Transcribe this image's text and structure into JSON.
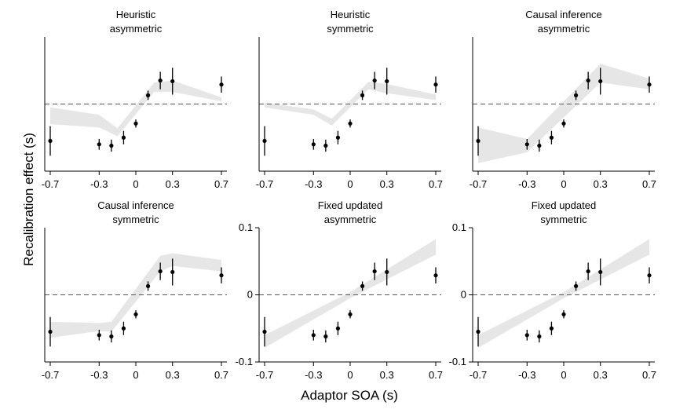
{
  "figure": {
    "ylabel": "Recalibration effect (s)",
    "xlabel": "Adaptor SOA (s)"
  },
  "chart_data": [
    {
      "type": "scatter",
      "title": [
        "Heuristic",
        "asymmetric"
      ],
      "xticks": [
        -0.7,
        -0.3,
        0,
        0.3,
        0.7
      ],
      "xtick_labels": [
        "-0.7",
        "-0.3",
        "0",
        "0.3",
        "0.7"
      ],
      "yticks": [],
      "ytick_labels": [],
      "xlim": [
        -0.72,
        0.72
      ],
      "ylim": [
        -0.1,
        0.1
      ],
      "points": [
        {
          "x": -0.7,
          "y": -0.055,
          "err": 0.022
        },
        {
          "x": -0.3,
          "y": -0.06,
          "err": 0.008
        },
        {
          "x": -0.2,
          "y": -0.062,
          "err": 0.009
        },
        {
          "x": -0.1,
          "y": -0.05,
          "err": 0.01
        },
        {
          "x": 0,
          "y": -0.029,
          "err": 0.006
        },
        {
          "x": 0.1,
          "y": 0.013,
          "err": 0.007
        },
        {
          "x": 0.2,
          "y": 0.035,
          "err": 0.013
        },
        {
          "x": 0.3,
          "y": 0.034,
          "err": 0.02
        },
        {
          "x": 0.7,
          "y": 0.029,
          "err": 0.012
        }
      ],
      "band": [
        {
          "x": -0.7,
          "lo": -0.03,
          "hi": -0.005
        },
        {
          "x": -0.3,
          "lo": -0.035,
          "hi": -0.016
        },
        {
          "x": -0.15,
          "lo": -0.048,
          "hi": -0.036
        },
        {
          "x": 0.15,
          "lo": 0.018,
          "hi": 0.032
        },
        {
          "x": 0.3,
          "lo": 0.018,
          "hi": 0.035
        },
        {
          "x": 0.7,
          "lo": 0.004,
          "hi": 0.01
        }
      ],
      "reference_line_y": 0
    },
    {
      "type": "scatter",
      "title": [
        "Heuristic",
        "symmetric"
      ],
      "xticks": [
        -0.7,
        -0.3,
        0,
        0.3,
        0.7
      ],
      "xtick_labels": [
        "-0.7",
        "-0.3",
        "0",
        "0.3",
        "0.7"
      ],
      "yticks": [],
      "ytick_labels": [],
      "xlim": [
        -0.72,
        0.72
      ],
      "ylim": [
        -0.1,
        0.1
      ],
      "points": [
        {
          "x": -0.7,
          "y": -0.055,
          "err": 0.022
        },
        {
          "x": -0.3,
          "y": -0.06,
          "err": 0.008
        },
        {
          "x": -0.2,
          "y": -0.062,
          "err": 0.009
        },
        {
          "x": -0.1,
          "y": -0.05,
          "err": 0.01
        },
        {
          "x": 0,
          "y": -0.029,
          "err": 0.006
        },
        {
          "x": 0.1,
          "y": 0.013,
          "err": 0.007
        },
        {
          "x": 0.2,
          "y": 0.035,
          "err": 0.013
        },
        {
          "x": 0.3,
          "y": 0.034,
          "err": 0.02
        },
        {
          "x": 0.7,
          "y": 0.029,
          "err": 0.012
        }
      ],
      "band": [
        {
          "x": -0.7,
          "lo": -0.005,
          "hi": 0.002
        },
        {
          "x": -0.3,
          "lo": -0.016,
          "hi": -0.008
        },
        {
          "x": -0.15,
          "lo": -0.032,
          "hi": -0.022
        },
        {
          "x": 0.15,
          "lo": 0.022,
          "hi": 0.033
        },
        {
          "x": 0.3,
          "lo": 0.016,
          "hi": 0.03
        },
        {
          "x": 0.7,
          "lo": 0.006,
          "hi": 0.014
        }
      ],
      "reference_line_y": 0
    },
    {
      "type": "scatter",
      "title": [
        "Causal inference",
        "asymmetric"
      ],
      "xticks": [
        -0.7,
        -0.3,
        0,
        0.3,
        0.7
      ],
      "xtick_labels": [
        "-0.7",
        "-0.3",
        "0",
        "0.3",
        "0.7"
      ],
      "yticks": [],
      "ytick_labels": [],
      "xlim": [
        -0.72,
        0.72
      ],
      "ylim": [
        -0.1,
        0.1
      ],
      "points": [
        {
          "x": -0.7,
          "y": -0.055,
          "err": 0.022
        },
        {
          "x": -0.3,
          "y": -0.06,
          "err": 0.008
        },
        {
          "x": -0.2,
          "y": -0.062,
          "err": 0.009
        },
        {
          "x": -0.1,
          "y": -0.05,
          "err": 0.01
        },
        {
          "x": 0,
          "y": -0.029,
          "err": 0.006
        },
        {
          "x": 0.1,
          "y": 0.013,
          "err": 0.007
        },
        {
          "x": 0.2,
          "y": 0.035,
          "err": 0.013
        },
        {
          "x": 0.3,
          "y": 0.034,
          "err": 0.02
        },
        {
          "x": 0.7,
          "y": 0.029,
          "err": 0.012
        }
      ],
      "band": [
        {
          "x": -0.7,
          "lo": -0.088,
          "hi": -0.035
        },
        {
          "x": -0.3,
          "lo": -0.072,
          "hi": -0.052
        },
        {
          "x": 0.3,
          "lo": 0.032,
          "hi": 0.06
        },
        {
          "x": 0.7,
          "lo": 0.022,
          "hi": 0.038
        }
      ],
      "reference_line_y": 0
    },
    {
      "type": "scatter",
      "title": [
        "Causal inference",
        "symmetric"
      ],
      "xticks": [
        -0.7,
        -0.3,
        0,
        0.3,
        0.7
      ],
      "xtick_labels": [
        "-0.7",
        "-0.3",
        "0",
        "0.3",
        "0.7"
      ],
      "yticks": [],
      "ytick_labels": [],
      "xlim": [
        -0.72,
        0.72
      ],
      "ylim": [
        -0.1,
        0.1
      ],
      "points": [
        {
          "x": -0.7,
          "y": -0.055,
          "err": 0.022
        },
        {
          "x": -0.3,
          "y": -0.06,
          "err": 0.008
        },
        {
          "x": -0.2,
          "y": -0.062,
          "err": 0.009
        },
        {
          "x": -0.1,
          "y": -0.05,
          "err": 0.01
        },
        {
          "x": 0,
          "y": -0.029,
          "err": 0.006
        },
        {
          "x": 0.1,
          "y": 0.013,
          "err": 0.007
        },
        {
          "x": 0.2,
          "y": 0.035,
          "err": 0.013
        },
        {
          "x": 0.3,
          "y": 0.034,
          "err": 0.02
        },
        {
          "x": 0.7,
          "y": 0.029,
          "err": 0.012
        }
      ],
      "band": [
        {
          "x": -0.7,
          "lo": -0.064,
          "hi": -0.04
        },
        {
          "x": -0.3,
          "lo": -0.054,
          "hi": -0.042
        },
        {
          "x": -0.2,
          "lo": -0.055,
          "hi": -0.04
        },
        {
          "x": 0.2,
          "lo": 0.035,
          "hi": 0.058
        },
        {
          "x": 0.3,
          "lo": 0.043,
          "hi": 0.062
        },
        {
          "x": 0.7,
          "lo": 0.035,
          "hi": 0.052
        }
      ],
      "reference_line_y": 0
    },
    {
      "type": "scatter",
      "title": [
        "Fixed updated",
        "asymmetric"
      ],
      "xticks": [
        -0.7,
        -0.3,
        0,
        0.3,
        0.7
      ],
      "xtick_labels": [
        "-0.7",
        "-0.3",
        "0",
        "0.3",
        "0.7"
      ],
      "yticks": [
        -0.1,
        0,
        0.1
      ],
      "ytick_labels": [
        "-0.1",
        "0",
        "0.1"
      ],
      "xlim": [
        -0.72,
        0.72
      ],
      "ylim": [
        -0.1,
        0.1
      ],
      "points": [
        {
          "x": -0.7,
          "y": -0.055,
          "err": 0.022
        },
        {
          "x": -0.3,
          "y": -0.06,
          "err": 0.008
        },
        {
          "x": -0.2,
          "y": -0.062,
          "err": 0.009
        },
        {
          "x": -0.1,
          "y": -0.05,
          "err": 0.01
        },
        {
          "x": 0,
          "y": -0.029,
          "err": 0.006
        },
        {
          "x": 0.1,
          "y": 0.013,
          "err": 0.007
        },
        {
          "x": 0.2,
          "y": 0.035,
          "err": 0.013
        },
        {
          "x": 0.3,
          "y": 0.034,
          "err": 0.02
        },
        {
          "x": 0.7,
          "y": 0.029,
          "err": 0.012
        }
      ],
      "band": [
        {
          "x": -0.7,
          "lo": -0.079,
          "hi": -0.06
        },
        {
          "x": 0,
          "lo": -0.005,
          "hi": 0.004
        },
        {
          "x": 0.7,
          "lo": 0.06,
          "hi": 0.083
        }
      ],
      "reference_line_y": 0
    },
    {
      "type": "scatter",
      "title": [
        "Fixed updated",
        "symmetric"
      ],
      "xticks": [
        -0.7,
        -0.3,
        0,
        0.3,
        0.7
      ],
      "xtick_labels": [
        "-0.7",
        "-0.3",
        "0",
        "0.3",
        "0.7"
      ],
      "yticks": [
        -0.1,
        0,
        0.1
      ],
      "ytick_labels": [
        "-0.1",
        "0",
        "0.1"
      ],
      "xlim": [
        -0.72,
        0.72
      ],
      "ylim": [
        -0.1,
        0.1
      ],
      "points": [
        {
          "x": -0.7,
          "y": -0.055,
          "err": 0.022
        },
        {
          "x": -0.3,
          "y": -0.06,
          "err": 0.008
        },
        {
          "x": -0.2,
          "y": -0.062,
          "err": 0.009
        },
        {
          "x": -0.1,
          "y": -0.05,
          "err": 0.01
        },
        {
          "x": 0,
          "y": -0.029,
          "err": 0.006
        },
        {
          "x": 0.1,
          "y": 0.013,
          "err": 0.007
        },
        {
          "x": 0.2,
          "y": 0.035,
          "err": 0.013
        },
        {
          "x": 0.3,
          "y": 0.034,
          "err": 0.02
        },
        {
          "x": 0.7,
          "y": 0.029,
          "err": 0.012
        }
      ],
      "band": [
        {
          "x": -0.7,
          "lo": -0.079,
          "hi": -0.06
        },
        {
          "x": 0,
          "lo": -0.005,
          "hi": 0.004
        },
        {
          "x": 0.7,
          "lo": 0.06,
          "hi": 0.083
        }
      ],
      "reference_line_y": 0
    }
  ]
}
